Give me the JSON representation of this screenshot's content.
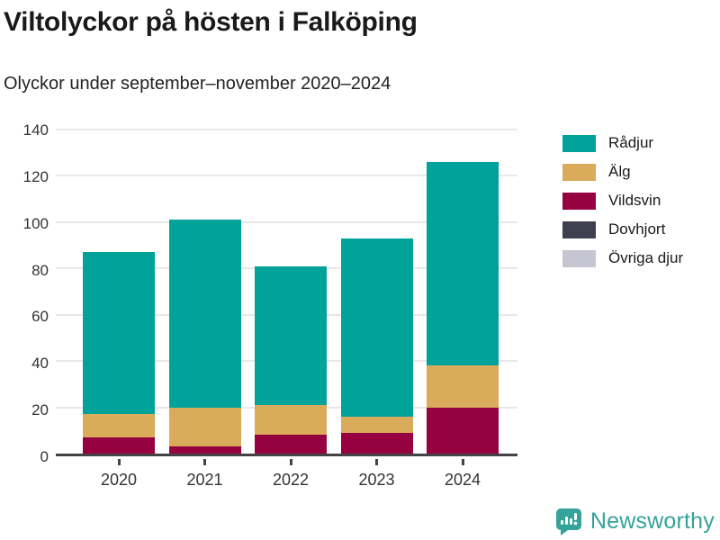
{
  "chart_data": {
    "type": "bar",
    "stacked": true,
    "title": "Viltolyckor på hösten i Falköping",
    "subtitle": "Olyckor under september–november 2020–2024",
    "categories": [
      "2020",
      "2021",
      "2022",
      "2023",
      "2024"
    ],
    "series": [
      {
        "name": "Rådjur",
        "color": "#00a29a",
        "values": [
          70,
          81,
          60,
          77,
          88
        ]
      },
      {
        "name": "Älg",
        "color": "#d9ab5a",
        "values": [
          10,
          17,
          13,
          7,
          18
        ]
      },
      {
        "name": "Vildsvin",
        "color": "#960140",
        "values": [
          7,
          3,
          8,
          9,
          20
        ]
      },
      {
        "name": "Dovhjort",
        "color": "#404150",
        "values": [
          0,
          0,
          0,
          0,
          0
        ]
      },
      {
        "name": "Övriga djur",
        "color": "#c6c6d2",
        "values": [
          0,
          0,
          0,
          0,
          0
        ]
      }
    ],
    "totals": [
      87,
      101,
      81,
      93,
      126
    ],
    "ylim": [
      0,
      140
    ],
    "yticks": [
      0,
      20,
      40,
      60,
      80,
      100,
      120,
      140
    ],
    "grid": true,
    "legend_position": "right",
    "xlabel": "",
    "ylabel": ""
  },
  "colors": {
    "title": "#1a1a1a",
    "text": "#333333",
    "axis": "#434343",
    "grid": "#e8e8e8",
    "brand": "#35a39b"
  },
  "footer": {
    "brand": "Newsworthy"
  }
}
